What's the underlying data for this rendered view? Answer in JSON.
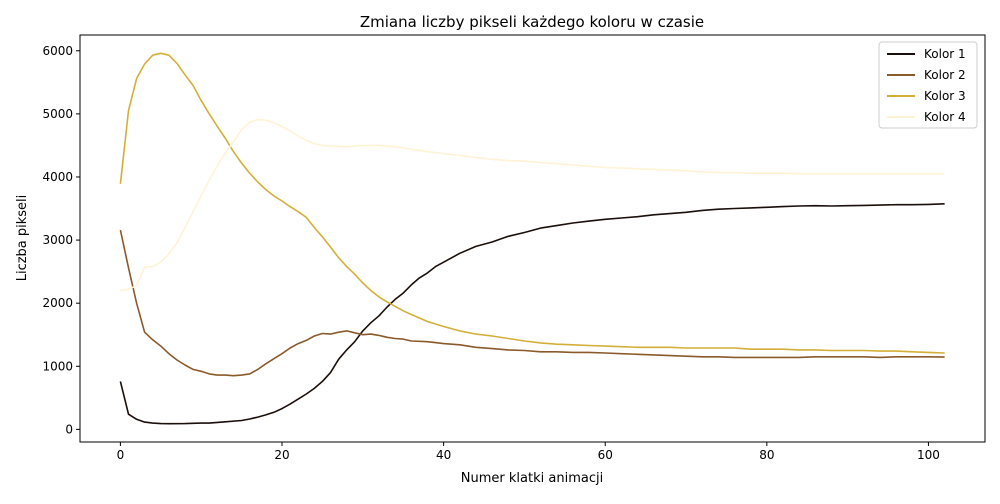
{
  "chart_data": {
    "type": "line",
    "title": "Zmiana liczby pikseli każdego koloru w czasie",
    "xlabel": "Numer klatki animacji",
    "ylabel": "Liczba pikseli",
    "xlim": [
      -5,
      107
    ],
    "ylim": [
      -200,
      6250
    ],
    "xticks": [
      0,
      20,
      40,
      60,
      80,
      100
    ],
    "yticks": [
      0,
      1000,
      2000,
      3000,
      4000,
      5000,
      6000
    ],
    "grid": false,
    "legend_position": "top-right",
    "series": [
      {
        "name": "Kolor 1",
        "color": "#1a0f0a",
        "points": [
          [
            0,
            760
          ],
          [
            1,
            240
          ],
          [
            2,
            160
          ],
          [
            3,
            115
          ],
          [
            4,
            100
          ],
          [
            5,
            92
          ],
          [
            6,
            90
          ],
          [
            8,
            92
          ],
          [
            10,
            100
          ],
          [
            11,
            100
          ],
          [
            12,
            110
          ],
          [
            13,
            120
          ],
          [
            15,
            140
          ],
          [
            16,
            165
          ],
          [
            17,
            195
          ],
          [
            18,
            230
          ],
          [
            19,
            270
          ],
          [
            20,
            330
          ],
          [
            21,
            400
          ],
          [
            22,
            480
          ],
          [
            23,
            560
          ],
          [
            24,
            650
          ],
          [
            25,
            760
          ],
          [
            26,
            900
          ],
          [
            27,
            1110
          ],
          [
            28,
            1260
          ],
          [
            29,
            1390
          ],
          [
            30,
            1560
          ],
          [
            31,
            1690
          ],
          [
            32,
            1800
          ],
          [
            33,
            1940
          ],
          [
            34,
            2060
          ],
          [
            35,
            2160
          ],
          [
            36,
            2290
          ],
          [
            37,
            2400
          ],
          [
            38,
            2480
          ],
          [
            39,
            2580
          ],
          [
            40,
            2650
          ],
          [
            42,
            2790
          ],
          [
            44,
            2900
          ],
          [
            46,
            2970
          ],
          [
            48,
            3060
          ],
          [
            50,
            3120
          ],
          [
            52,
            3190
          ],
          [
            54,
            3230
          ],
          [
            56,
            3270
          ],
          [
            58,
            3300
          ],
          [
            60,
            3330
          ],
          [
            62,
            3350
          ],
          [
            64,
            3370
          ],
          [
            66,
            3400
          ],
          [
            68,
            3420
          ],
          [
            70,
            3440
          ],
          [
            72,
            3470
          ],
          [
            74,
            3490
          ],
          [
            76,
            3500
          ],
          [
            78,
            3510
          ],
          [
            80,
            3520
          ],
          [
            82,
            3530
          ],
          [
            84,
            3540
          ],
          [
            86,
            3545
          ],
          [
            88,
            3540
          ],
          [
            90,
            3545
          ],
          [
            92,
            3550
          ],
          [
            94,
            3555
          ],
          [
            96,
            3560
          ],
          [
            98,
            3560
          ],
          [
            100,
            3565
          ],
          [
            102,
            3575
          ]
        ]
      },
      {
        "name": "Kolor 2",
        "color": "#8b5a2b",
        "points": [
          [
            0,
            3160
          ],
          [
            1,
            2560
          ],
          [
            2,
            2000
          ],
          [
            3,
            1540
          ],
          [
            4,
            1420
          ],
          [
            5,
            1320
          ],
          [
            6,
            1200
          ],
          [
            7,
            1100
          ],
          [
            8,
            1020
          ],
          [
            9,
            950
          ],
          [
            10,
            920
          ],
          [
            11,
            880
          ],
          [
            12,
            860
          ],
          [
            13,
            860
          ],
          [
            14,
            850
          ],
          [
            15,
            860
          ],
          [
            16,
            880
          ],
          [
            17,
            950
          ],
          [
            18,
            1040
          ],
          [
            19,
            1120
          ],
          [
            20,
            1200
          ],
          [
            21,
            1290
          ],
          [
            22,
            1360
          ],
          [
            23,
            1410
          ],
          [
            24,
            1480
          ],
          [
            25,
            1520
          ],
          [
            26,
            1510
          ],
          [
            27,
            1540
          ],
          [
            28,
            1560
          ],
          [
            29,
            1530
          ],
          [
            30,
            1500
          ],
          [
            31,
            1510
          ],
          [
            32,
            1490
          ],
          [
            33,
            1460
          ],
          [
            34,
            1440
          ],
          [
            35,
            1430
          ],
          [
            36,
            1400
          ],
          [
            38,
            1390
          ],
          [
            40,
            1360
          ],
          [
            42,
            1340
          ],
          [
            44,
            1300
          ],
          [
            46,
            1280
          ],
          [
            48,
            1260
          ],
          [
            50,
            1250
          ],
          [
            52,
            1230
          ],
          [
            54,
            1230
          ],
          [
            56,
            1220
          ],
          [
            58,
            1220
          ],
          [
            60,
            1210
          ],
          [
            62,
            1200
          ],
          [
            64,
            1190
          ],
          [
            66,
            1180
          ],
          [
            68,
            1170
          ],
          [
            70,
            1160
          ],
          [
            72,
            1150
          ],
          [
            74,
            1150
          ],
          [
            76,
            1140
          ],
          [
            78,
            1140
          ],
          [
            80,
            1140
          ],
          [
            82,
            1140
          ],
          [
            84,
            1140
          ],
          [
            86,
            1150
          ],
          [
            88,
            1150
          ],
          [
            90,
            1150
          ],
          [
            92,
            1150
          ],
          [
            94,
            1140
          ],
          [
            96,
            1150
          ],
          [
            98,
            1150
          ],
          [
            100,
            1150
          ],
          [
            102,
            1145
          ]
        ]
      },
      {
        "name": "Kolor 3",
        "color": "#d4af37",
        "points": [
          [
            0,
            3890
          ],
          [
            1,
            5050
          ],
          [
            2,
            5560
          ],
          [
            3,
            5790
          ],
          [
            4,
            5930
          ],
          [
            5,
            5960
          ],
          [
            6,
            5930
          ],
          [
            7,
            5800
          ],
          [
            8,
            5620
          ],
          [
            9,
            5450
          ],
          [
            10,
            5210
          ],
          [
            11,
            5000
          ],
          [
            12,
            4800
          ],
          [
            13,
            4610
          ],
          [
            14,
            4400
          ],
          [
            15,
            4220
          ],
          [
            16,
            4060
          ],
          [
            17,
            3920
          ],
          [
            18,
            3800
          ],
          [
            19,
            3700
          ],
          [
            20,
            3620
          ],
          [
            21,
            3530
          ],
          [
            22,
            3450
          ],
          [
            23,
            3360
          ],
          [
            24,
            3200
          ],
          [
            25,
            3050
          ],
          [
            26,
            2890
          ],
          [
            27,
            2720
          ],
          [
            28,
            2580
          ],
          [
            29,
            2460
          ],
          [
            30,
            2320
          ],
          [
            31,
            2200
          ],
          [
            32,
            2100
          ],
          [
            33,
            2020
          ],
          [
            34,
            1950
          ],
          [
            35,
            1880
          ],
          [
            36,
            1820
          ],
          [
            38,
            1710
          ],
          [
            40,
            1630
          ],
          [
            42,
            1560
          ],
          [
            44,
            1510
          ],
          [
            46,
            1480
          ],
          [
            48,
            1440
          ],
          [
            50,
            1400
          ],
          [
            52,
            1370
          ],
          [
            54,
            1350
          ],
          [
            56,
            1340
          ],
          [
            58,
            1330
          ],
          [
            60,
            1320
          ],
          [
            62,
            1310
          ],
          [
            64,
            1300
          ],
          [
            66,
            1300
          ],
          [
            68,
            1300
          ],
          [
            70,
            1290
          ],
          [
            72,
            1290
          ],
          [
            74,
            1290
          ],
          [
            76,
            1290
          ],
          [
            78,
            1270
          ],
          [
            80,
            1270
          ],
          [
            82,
            1270
          ],
          [
            84,
            1260
          ],
          [
            86,
            1260
          ],
          [
            88,
            1250
          ],
          [
            90,
            1250
          ],
          [
            92,
            1250
          ],
          [
            94,
            1240
          ],
          [
            96,
            1240
          ],
          [
            98,
            1230
          ],
          [
            100,
            1220
          ],
          [
            102,
            1210
          ]
        ]
      },
      {
        "name": "Kolor 4",
        "color": "#fff3d6",
        "points": [
          [
            0,
            2200
          ],
          [
            1,
            2220
          ],
          [
            2,
            2280
          ],
          [
            3,
            2570
          ],
          [
            4,
            2580
          ],
          [
            5,
            2650
          ],
          [
            6,
            2780
          ],
          [
            7,
            2960
          ],
          [
            8,
            3200
          ],
          [
            9,
            3450
          ],
          [
            10,
            3700
          ],
          [
            11,
            3950
          ],
          [
            12,
            4180
          ],
          [
            13,
            4380
          ],
          [
            14,
            4560
          ],
          [
            15,
            4750
          ],
          [
            16,
            4870
          ],
          [
            17,
            4910
          ],
          [
            18,
            4900
          ],
          [
            19,
            4860
          ],
          [
            20,
            4800
          ],
          [
            21,
            4730
          ],
          [
            22,
            4650
          ],
          [
            23,
            4580
          ],
          [
            24,
            4530
          ],
          [
            25,
            4500
          ],
          [
            26,
            4490
          ],
          [
            28,
            4480
          ],
          [
            30,
            4500
          ],
          [
            32,
            4500
          ],
          [
            34,
            4480
          ],
          [
            36,
            4440
          ],
          [
            38,
            4400
          ],
          [
            40,
            4370
          ],
          [
            42,
            4340
          ],
          [
            44,
            4310
          ],
          [
            46,
            4280
          ],
          [
            48,
            4260
          ],
          [
            50,
            4250
          ],
          [
            52,
            4230
          ],
          [
            54,
            4210
          ],
          [
            56,
            4190
          ],
          [
            58,
            4170
          ],
          [
            60,
            4150
          ],
          [
            62,
            4140
          ],
          [
            64,
            4130
          ],
          [
            66,
            4120
          ],
          [
            68,
            4110
          ],
          [
            70,
            4100
          ],
          [
            72,
            4080
          ],
          [
            74,
            4070
          ],
          [
            76,
            4070
          ],
          [
            78,
            4060
          ],
          [
            80,
            4060
          ],
          [
            82,
            4060
          ],
          [
            84,
            4050
          ],
          [
            86,
            4050
          ],
          [
            88,
            4050
          ],
          [
            90,
            4050
          ],
          [
            92,
            4050
          ],
          [
            94,
            4050
          ],
          [
            96,
            4050
          ],
          [
            98,
            4050
          ],
          [
            100,
            4050
          ],
          [
            102,
            4050
          ]
        ]
      }
    ]
  }
}
